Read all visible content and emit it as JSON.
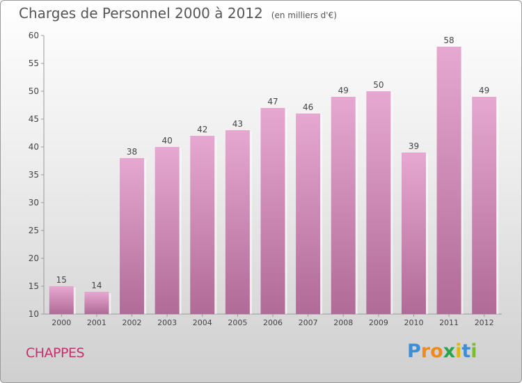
{
  "chart_data": {
    "type": "bar",
    "title": "Charges de Personnel 2000 à 2012",
    "subtitle": "(en milliers d'€)",
    "categories": [
      "2000",
      "2001",
      "2002",
      "2003",
      "2004",
      "2005",
      "2006",
      "2007",
      "2008",
      "2009",
      "2010",
      "2011",
      "2012"
    ],
    "values": [
      15,
      14,
      38,
      40,
      42,
      43,
      47,
      46,
      49,
      50,
      39,
      58,
      49
    ],
    "ylim": [
      10,
      60
    ],
    "yticks": [
      10,
      15,
      20,
      25,
      30,
      35,
      40,
      45,
      50,
      55,
      60
    ],
    "grid": false,
    "bar_color_top": "#e6a8d0",
    "bar_color_bottom": "#b06b96"
  },
  "footer": {
    "place": "CHAPPES",
    "logo_letters": [
      "P",
      "r",
      "o",
      "x",
      "i",
      "t",
      "i"
    ],
    "logo_colors": [
      "#3a8fd8",
      "#f08a1c",
      "#f08a1c",
      "#2aa44a",
      "#e2b313",
      "#3a8fd8",
      "#7abf2a"
    ]
  }
}
